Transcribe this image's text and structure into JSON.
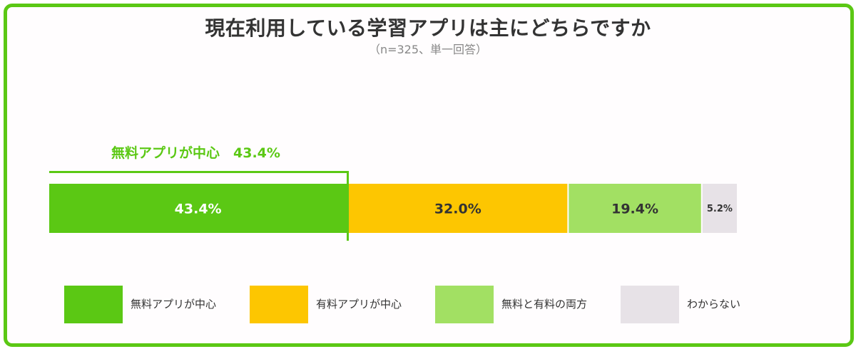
{
  "title": "現在利用している学習アプリは主にどちらですか",
  "subtitle": "（n=325、単一回答）",
  "callout": {
    "label": "無料アプリが中心　43.4%"
  },
  "legend": [
    {
      "label": "無料アプリが中心",
      "color": "#5bc814"
    },
    {
      "label": "有料アプリが中心",
      "color": "#fdc601"
    },
    {
      "label": "無料と有料の両方",
      "color": "#a2e063"
    },
    {
      "label": "わからない",
      "color": "#e7e2e7"
    }
  ],
  "chart_data": {
    "type": "bar",
    "orientation": "horizontal-stacked-100",
    "categories": [
      "無料アプリが中心",
      "有料アプリが中心",
      "無料と有料の両方",
      "わからない"
    ],
    "values": [
      43.4,
      32.0,
      19.4,
      5.2
    ],
    "labels": [
      "43.4%",
      "32.0%",
      "19.4%",
      "5.2%"
    ],
    "colors": [
      "#5bc814",
      "#fdc601",
      "#a2e063",
      "#e7e2e7"
    ],
    "label_colors": [
      "#ffffff",
      "#333333",
      "#333333",
      "#333333"
    ],
    "title": "現在利用している学習アプリは主にどちらですか",
    "xlim": [
      0,
      100
    ],
    "grid": false,
    "legend_position": "bottom"
  }
}
